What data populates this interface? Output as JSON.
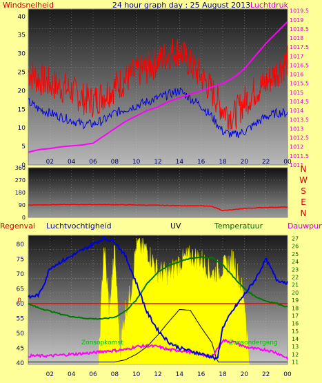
{
  "header": {
    "title": "24 hour graph day : 25 August 2013",
    "left_label": "Windsnelheid",
    "right_label": "Luchtdruk"
  },
  "colors": {
    "background": "#ffff99",
    "wind": "#ff0000",
    "gust": "#0000dd",
    "pressure": "#ff00ff",
    "humidity": "#0000dd",
    "temperature": "#007700",
    "uv": "#000000",
    "solar": "#ffff00",
    "rain": "#ff0000",
    "dewpoint": "#ff00ff",
    "right_axis_text": "#cc00cc",
    "temp_axis_text": "#006600"
  },
  "panel2": {
    "compass": [
      "N",
      "W",
      "S",
      "E",
      "N"
    ]
  },
  "panel3": {
    "labels": {
      "regenval": "Regenval",
      "luchtvochtigheid": "Luchtvochtigheid",
      "uv": "UV",
      "temperatuur": "Temperatuur",
      "dauwpunt": "Dauwpunt"
    },
    "annotations": {
      "sunrise": "Zonsopkomst",
      "sunset": "Zonsondergang"
    },
    "rain_marker": "0"
  },
  "chart_data": [
    {
      "type": "line",
      "xlabel": "",
      "x_ticks": [
        "02",
        "04",
        "06",
        "08",
        "10",
        "12",
        "14",
        "16",
        "18",
        "20",
        "22",
        "00"
      ],
      "y_left": {
        "label": "Windsnelheid",
        "ticks": [
          0,
          5,
          10,
          15,
          20,
          25,
          30,
          35,
          40
        ],
        "ylim": [
          0,
          42
        ]
      },
      "y_right": {
        "label": "Luchtdruk",
        "ticks": [
          1011,
          1011.5,
          1012,
          1012.5,
          1013,
          1013.5,
          1014,
          1014.5,
          1015,
          1015.5,
          1016,
          1016.5,
          1017,
          1017.5,
          1018,
          1018.5,
          1019,
          1019.5
        ],
        "ylim": [
          1011,
          1019.6
        ]
      },
      "series": [
        {
          "name": "Windsnelheid",
          "axis": "left",
          "color": "#ff0000",
          "x": [
            0,
            1,
            2,
            3,
            4,
            5,
            6,
            7,
            8,
            9,
            10,
            11,
            12,
            13,
            14,
            15,
            16,
            17,
            18,
            19,
            20,
            21,
            22,
            23,
            24
          ],
          "y": [
            25,
            23,
            22,
            21,
            20,
            18,
            17,
            19,
            21,
            23,
            25,
            26,
            28,
            30,
            31,
            27,
            24,
            20,
            15,
            13,
            17,
            20,
            22,
            25,
            28
          ]
        },
        {
          "name": "Windstoot",
          "axis": "left",
          "color": "#0000dd",
          "x": [
            0,
            1,
            2,
            3,
            4,
            5,
            6,
            7,
            8,
            9,
            10,
            11,
            12,
            13,
            14,
            15,
            16,
            17,
            18,
            19,
            20,
            21,
            22,
            23,
            24
          ],
          "y": [
            17,
            15,
            14,
            13,
            12,
            11,
            11,
            12,
            14,
            15,
            16,
            17,
            18,
            19,
            20,
            18,
            16,
            13,
            9,
            8,
            9,
            11,
            13,
            14,
            14
          ]
        },
        {
          "name": "Luchtdruk",
          "axis": "right",
          "color": "#ff00ff",
          "x": [
            0,
            1,
            2,
            3,
            4,
            5,
            6,
            7,
            8,
            9,
            10,
            11,
            12,
            13,
            14,
            15,
            16,
            17,
            18,
            19,
            20,
            21,
            22,
            23,
            24
          ],
          "y": [
            1011.7,
            1011.85,
            1011.9,
            1012.0,
            1012.05,
            1012.1,
            1012.2,
            1012.6,
            1013.0,
            1013.4,
            1013.7,
            1014.0,
            1014.2,
            1014.5,
            1014.7,
            1014.9,
            1015.1,
            1015.3,
            1015.5,
            1015.8,
            1016.3,
            1017.0,
            1017.7,
            1018.3,
            1018.9
          ]
        }
      ]
    },
    {
      "type": "line",
      "y_left": {
        "label": "",
        "ticks": [
          0,
          90,
          180,
          270,
          360
        ],
        "ylim": [
          0,
          360
        ]
      },
      "series": [
        {
          "name": "Windrichting",
          "color": "#ff0000",
          "x": [
            0,
            2,
            4,
            6,
            8,
            10,
            12,
            14,
            16,
            17,
            18,
            19,
            20,
            22,
            24
          ],
          "y": [
            90,
            92,
            93,
            93,
            92,
            90,
            88,
            85,
            84,
            80,
            50,
            55,
            65,
            72,
            75
          ]
        }
      ]
    },
    {
      "type": "line",
      "x_ticks": [
        "02",
        "04",
        "06",
        "08",
        "10",
        "12",
        "14",
        "16",
        "18",
        "20",
        "22",
        "00"
      ],
      "y_left": {
        "label": "Regenval",
        "ticks": [
          40,
          45,
          50,
          55,
          60,
          65,
          70,
          75,
          80
        ],
        "ylim": [
          39.5,
          83
        ]
      },
      "y_right": {
        "label": "Temperatuur",
        "ticks": [
          11,
          12,
          13,
          14,
          15,
          16,
          17,
          18,
          19,
          20,
          21,
          22,
          23,
          24,
          25,
          26,
          27
        ],
        "ylim": [
          10.7,
          27.4
        ]
      },
      "series": [
        {
          "name": "Luchtvochtigheid",
          "axis": "left",
          "color": "#0000dd",
          "x": [
            0,
            1,
            1.5,
            2,
            3,
            4,
            5,
            6,
            7,
            8,
            9,
            10,
            11,
            12,
            13,
            14,
            15,
            16,
            17,
            17.5,
            18,
            19,
            20,
            21,
            22,
            23,
            24
          ],
          "y": [
            62,
            63,
            67,
            72,
            74,
            76,
            78,
            80,
            82,
            81,
            76,
            67,
            57,
            51,
            47,
            45,
            44,
            43,
            42,
            41,
            52,
            58,
            63,
            68,
            75,
            68,
            67
          ]
        },
        {
          "name": "Temperatuur",
          "axis": "right",
          "color": "#007700",
          "x": [
            0,
            1,
            2,
            3,
            4,
            5,
            6,
            7,
            8,
            9,
            10,
            11,
            12,
            13,
            14,
            15,
            16,
            17,
            18,
            19,
            20,
            21,
            22,
            23,
            24
          ],
          "y": [
            18.5,
            18.0,
            17.6,
            17.2,
            16.9,
            16.7,
            16.6,
            16.6,
            16.8,
            17.6,
            19.0,
            21.2,
            22.6,
            23.5,
            24.0,
            24.4,
            24.6,
            24.5,
            23.6,
            22.0,
            20.5,
            19.5,
            18.9,
            18.6,
            18.1
          ]
        },
        {
          "name": "Dauwpunt",
          "axis": "right",
          "color": "#ff00ff",
          "x": [
            0,
            2,
            4,
            6,
            7,
            8,
            9,
            10,
            11,
            12,
            13,
            14,
            15,
            16,
            17,
            18,
            19,
            20,
            21,
            22,
            23,
            24
          ],
          "y": [
            11.8,
            11.8,
            12.0,
            12.2,
            12.4,
            12.5,
            12.6,
            13.0,
            13.1,
            13.0,
            12.6,
            12.5,
            12.3,
            12.0,
            11.7,
            13.8,
            13.6,
            13.0,
            12.7,
            12.6,
            12.2,
            11.5
          ]
        },
        {
          "name": "UV",
          "axis": "right",
          "color": "#000000",
          "x": [
            0,
            6,
            7,
            8,
            9,
            10,
            11,
            12,
            13,
            14,
            15,
            16,
            17,
            17.5,
            24
          ],
          "y": [
            11,
            11,
            11,
            11,
            11.3,
            12,
            13,
            14.5,
            16.2,
            17.8,
            17.7,
            15.5,
            13.5,
            11,
            11
          ]
        },
        {
          "name": "Zonnestraling",
          "axis": "left",
          "color": "#ffff00",
          "x": [
            6.5,
            7,
            7.5,
            8,
            8.5,
            9,
            9.5,
            10,
            11,
            12,
            13,
            14,
            15,
            16,
            17,
            18,
            19,
            20,
            20.5
          ],
          "y": [
            40,
            80,
            58,
            78,
            45,
            58,
            64,
            80,
            78,
            71,
            70,
            74,
            76,
            75,
            70,
            72,
            75,
            62,
            40
          ]
        }
      ]
    }
  ]
}
